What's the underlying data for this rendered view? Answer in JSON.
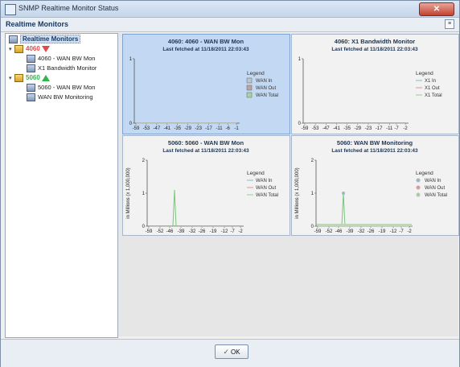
{
  "window": {
    "title": "SNMP Realtime Monitor Status"
  },
  "header": {
    "label": "Realtime Monitors"
  },
  "tree": {
    "root": "Realtime Monitors",
    "servers": [
      {
        "name": "4060",
        "status": "down",
        "color": "#e24b4b",
        "children": [
          "4060 - WAN BW Mon",
          "X1 Bandwidth Monitor"
        ]
      },
      {
        "name": "5060",
        "status": "up",
        "color": "#32b54a",
        "children": [
          "5060 - WAN BW Mon",
          "WAN BW Monitoring"
        ]
      }
    ]
  },
  "footer": {
    "ok_label": "OK"
  },
  "panels": [
    {
      "title": "4060: 4060 - WAN BW Mon",
      "subtitle": "Last fetched at 11/18/2011 22:03:43",
      "ylabel": "",
      "legend_title": "Legend",
      "legend": [
        "WAN In",
        "WAN Out",
        "WAN Total"
      ],
      "legend_colors": [
        "#b8c7cc",
        "#bfa3a3",
        "#a5d4a0"
      ]
    },
    {
      "title": "4060: X1 Bandwidth Monitor",
      "subtitle": "Last fetched at 11/18/2011 22:03:43",
      "ylabel": "",
      "legend_title": "Legend",
      "legend": [
        "X1 In",
        "X1 Out",
        "X1 Total"
      ],
      "legend_colors": [
        "#8fb6c7",
        "#d49a9a",
        "#9ccc95"
      ]
    },
    {
      "title": "5060: 5060 - WAN BW Mon",
      "subtitle": "Last fetched at 11/18/2011 22:03:43",
      "ylabel": "in Millions (x 1,000,000)",
      "legend_title": "Legend",
      "legend": [
        "WAN In",
        "WAN Out",
        "WAN Total"
      ],
      "legend_colors": [
        "#8fb6c7",
        "#d49a9a",
        "#9ccc95"
      ]
    },
    {
      "title": "5060: WAN BW Monitoring",
      "subtitle": "Last fetched at 11/18/2011 22:03:43",
      "ylabel": "in Millions (x 1,000,000)",
      "legend_title": "Legend",
      "legend": [
        "WAN In",
        "WAN Out",
        "WAN Total"
      ],
      "legend_colors": [
        "#9fb6c0",
        "#d2a0a0",
        "#a7cfa1"
      ]
    }
  ],
  "chart_data": [
    {
      "type": "line",
      "title": "4060: 4060 - WAN BW Mon",
      "x_ticks": [
        "-59",
        "-53",
        "-47",
        "-41",
        "-35",
        "-29",
        "-23",
        "-17",
        "-11",
        "-6",
        "-1"
      ],
      "y_ticks": [
        "0",
        "1"
      ],
      "ylim": [
        0,
        1
      ],
      "series": [
        {
          "name": "WAN In",
          "values": [
            0,
            0,
            0,
            0,
            0,
            0,
            0,
            0,
            0,
            0,
            0
          ]
        },
        {
          "name": "WAN Out",
          "values": [
            0,
            0,
            0,
            0,
            0,
            0,
            0,
            0,
            0,
            0,
            0
          ]
        },
        {
          "name": "WAN Total",
          "values": [
            0,
            0,
            0,
            0,
            0,
            0,
            0,
            0,
            0,
            0,
            0
          ]
        }
      ]
    },
    {
      "type": "line",
      "title": "4060: X1 Bandwidth Monitor",
      "x_ticks": [
        "-59",
        "-53",
        "-47",
        "-41",
        "-35",
        "-29",
        "-23",
        "-17",
        "-11",
        "-7",
        "-2"
      ],
      "y_ticks": [
        "0",
        "1"
      ],
      "ylim": [
        0,
        1
      ],
      "series": [
        {
          "name": "X1 In",
          "values": [
            0,
            0,
            0,
            0,
            0,
            0,
            0,
            0,
            0,
            0,
            0
          ]
        },
        {
          "name": "X1 Out",
          "values": [
            0,
            0,
            0,
            0,
            0,
            0,
            0,
            0,
            0,
            0,
            0
          ]
        },
        {
          "name": "X1 Total",
          "values": [
            0,
            0,
            0,
            0,
            0,
            0,
            0,
            0,
            0,
            0,
            0
          ]
        }
      ]
    },
    {
      "type": "line",
      "title": "5060: 5060 - WAN BW Mon",
      "x_ticks": [
        "-59",
        "-52",
        "-46",
        "-39",
        "-32",
        "-26",
        "-19",
        "-12",
        "-7",
        "-2"
      ],
      "y_ticks": [
        "0",
        "1",
        "2"
      ],
      "ylim": [
        0,
        2
      ],
      "ylabel": "in Millions (x 1,000,000)",
      "spike": {
        "x": -43,
        "value": 1.1
      },
      "series": [
        {
          "name": "WAN In",
          "values": [
            0,
            0,
            0,
            0,
            0,
            0,
            0,
            0,
            0,
            0
          ]
        },
        {
          "name": "WAN Out",
          "values": [
            0,
            0,
            0,
            0,
            0,
            0,
            0,
            0,
            0,
            0
          ]
        },
        {
          "name": "WAN Total",
          "values": [
            0,
            0,
            0,
            0,
            0,
            0,
            0,
            0,
            0,
            0
          ]
        }
      ]
    },
    {
      "type": "line",
      "title": "5060: WAN BW Monitoring",
      "x_ticks": [
        "-59",
        "-52",
        "-46",
        "-39",
        "-32",
        "-26",
        "-19",
        "-12",
        "-7",
        "-2"
      ],
      "y_ticks": [
        "0",
        "1",
        "2"
      ],
      "ylim": [
        0,
        2
      ],
      "ylabel": "in Millions (x 1,000,000)",
      "spike": {
        "x": -43,
        "value": 1.0
      },
      "series": [
        {
          "name": "WAN In",
          "values": [
            0,
            0,
            0,
            0,
            0,
            0,
            0,
            0,
            0,
            0
          ]
        },
        {
          "name": "WAN Out",
          "values": [
            0,
            0,
            0,
            0,
            0,
            0,
            0,
            0,
            0,
            0
          ]
        },
        {
          "name": "WAN Total",
          "values": [
            0,
            0,
            0,
            0,
            0,
            0,
            0,
            0,
            0,
            0
          ]
        }
      ]
    }
  ]
}
